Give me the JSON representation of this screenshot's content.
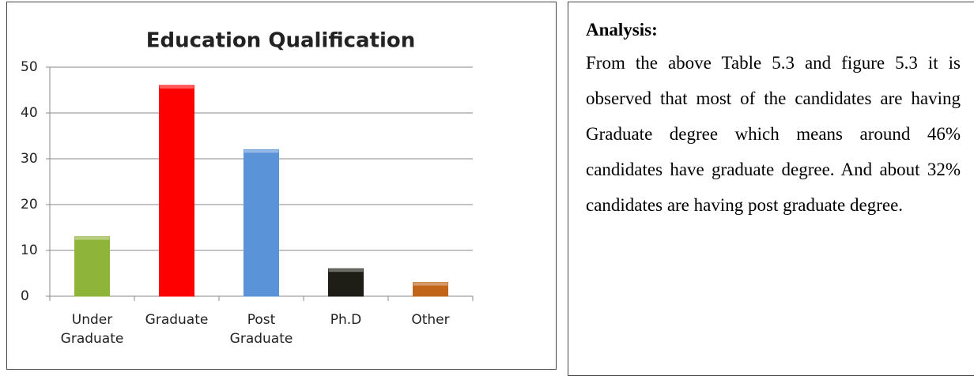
{
  "chart_data": {
    "type": "bar",
    "title": "Education Qualification",
    "categories": [
      "Under Graduate",
      "Graduate",
      "Post Graduate",
      "Ph.D",
      "Other"
    ],
    "values": [
      13,
      46,
      32,
      6,
      3
    ],
    "colors": [
      "#8fb43a",
      "#ff0000",
      "#5b93d8",
      "#1e1e16",
      "#c0651a"
    ],
    "ylim": [
      0,
      50
    ],
    "yticks": [
      0,
      10,
      20,
      30,
      40,
      50
    ],
    "grid": true
  },
  "analysis": {
    "heading": "Analysis:",
    "text": "From the above Table 5.3 and figure 5.3 it is observed that most of the candidates are having Graduate degree which means around 46% candidates have graduate degree. And about 32% candidates are having post graduate degree."
  }
}
